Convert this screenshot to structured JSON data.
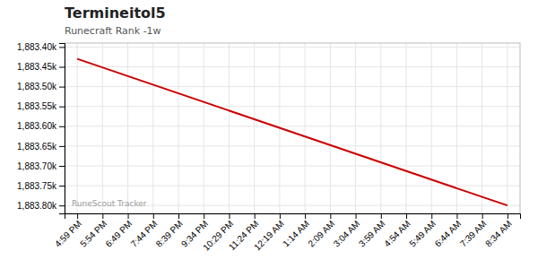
{
  "chart_data": {
    "type": "line",
    "title": "Termineitol5",
    "subtitle": "Runecraft Rank -1w",
    "annotations": [
      "RuneScout Tracker"
    ],
    "x": [
      0,
      17
    ],
    "values": [
      1883430,
      1883800
    ],
    "color": "#cc0000",
    "xlim": [
      -0.5,
      17.5
    ],
    "xticks": [
      {
        "value": 0,
        "label": "4:59 PM"
      },
      {
        "value": 1,
        "label": "5:54 PM"
      },
      {
        "value": 2,
        "label": "6:49 PM"
      },
      {
        "value": 3,
        "label": "7:44 PM"
      },
      {
        "value": 4,
        "label": "8:39 PM"
      },
      {
        "value": 5,
        "label": "9:34 PM"
      },
      {
        "value": 6,
        "label": "10:29 PM"
      },
      {
        "value": 7,
        "label": "11:24 PM"
      },
      {
        "value": 8,
        "label": "12:19 AM"
      },
      {
        "value": 9,
        "label": "1:14 AM"
      },
      {
        "value": 10,
        "label": "2:09 AM"
      },
      {
        "value": 11,
        "label": "3:04 AM"
      },
      {
        "value": 12,
        "label": "3:59 AM"
      },
      {
        "value": 13,
        "label": "4:54 AM"
      },
      {
        "value": 14,
        "label": "5:49 AM"
      },
      {
        "value": 15,
        "label": "6:44 AM"
      },
      {
        "value": 16,
        "label": "7:39 AM"
      },
      {
        "value": 17,
        "label": "8:34 AM"
      }
    ],
    "ylim": [
      1883820,
      1883390
    ],
    "yticks": [
      {
        "value": 1883400,
        "label": "1,883.40k"
      },
      {
        "value": 1883450,
        "label": "1,883.45k"
      },
      {
        "value": 1883500,
        "label": "1,883.50k"
      },
      {
        "value": 1883550,
        "label": "1,883.55k"
      },
      {
        "value": 1883600,
        "label": "1,883.60k"
      },
      {
        "value": 1883650,
        "label": "1,883.65k"
      },
      {
        "value": 1883700,
        "label": "1,883.70k"
      },
      {
        "value": 1883750,
        "label": "1,883.75k"
      },
      {
        "value": 1883800,
        "label": "1,883.80k"
      }
    ],
    "grid": true
  }
}
